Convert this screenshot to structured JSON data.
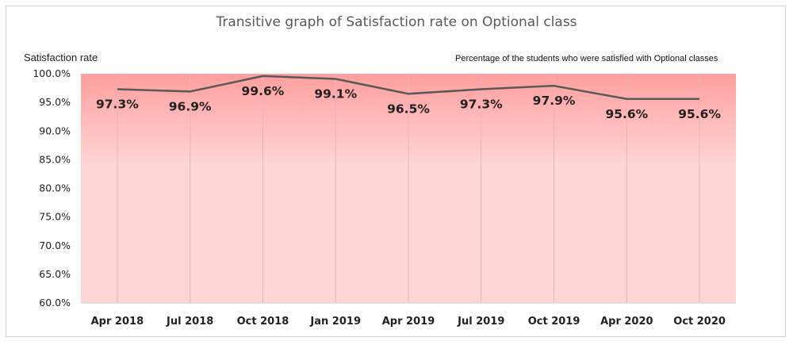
{
  "chart_data": {
    "type": "line",
    "title": "Transitive graph of Satisfaction rate on Optional class",
    "ylabel": "Satisfaction rate",
    "annotation": "Percentage of the students who were satisfied with Optional classes",
    "categories": [
      "Apr 2018",
      "Jul 2018",
      "Oct 2018",
      "Jan 2019",
      "Apr 2019",
      "Jul 2019",
      "Oct 2019",
      "Apr 2020",
      "Oct 2020"
    ],
    "series": [
      {
        "values": [
          97.3,
          96.9,
          99.6,
          99.1,
          96.5,
          97.3,
          97.9,
          95.6,
          95.6
        ],
        "labels": [
          "97.3%",
          "96.9%",
          "99.6%",
          "99.1%",
          "96.5%",
          "97.3%",
          "97.9%",
          "95.6%",
          "95.6%"
        ]
      }
    ],
    "ylim": [
      60,
      100
    ],
    "yticks": [
      "60.0%",
      "65.0%",
      "70.0%",
      "75.0%",
      "80.0%",
      "85.0%",
      "90.0%",
      "95.0%",
      "100.0%"
    ],
    "legend": "none",
    "grid": "vertical",
    "colors": {
      "line": "#595959",
      "area_top": "#ff9e9e",
      "area_bottom": "#ffd6d6",
      "grid": "#e8b5b5"
    }
  }
}
